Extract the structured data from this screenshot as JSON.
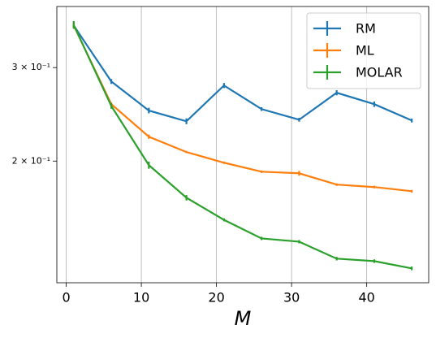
{
  "chart_data": {
    "type": "line",
    "xlabel": "M",
    "x": [
      1,
      6,
      11,
      16,
      21,
      26,
      31,
      36,
      41,
      46
    ],
    "series": [
      {
        "name": "RM",
        "color": "#1f77b4",
        "values": [
          0.36,
          0.2825,
          0.249,
          0.2377,
          0.2776,
          0.2506,
          0.2393,
          0.269,
          0.256,
          0.2385
        ],
        "errors": [
          0.004,
          0.003,
          0.003,
          0.003,
          0.003,
          0.002,
          0.002,
          0.003,
          0.003,
          0.002
        ]
      },
      {
        "name": "ML",
        "color": "#ff7f0e",
        "values": [
          0.36,
          0.256,
          0.2223,
          0.208,
          0.1986,
          0.191,
          0.1897,
          0.1806,
          0.1787,
          0.1755
        ],
        "errors": [
          0.004,
          0.002,
          0.002,
          0.001,
          0.001,
          0.001,
          0.002,
          0.001,
          0.001,
          0.001
        ]
      },
      {
        "name": "MOLAR",
        "color": "#2ca02c",
        "values": [
          0.361,
          0.254,
          0.1965,
          0.1706,
          0.155,
          0.143,
          0.141,
          0.131,
          0.1296,
          0.1256
        ],
        "errors": [
          0.006,
          0.003,
          0.003,
          0.002,
          0.001,
          0.001,
          0.001,
          0.001,
          0.001,
          0.001
        ]
      }
    ],
    "xlim": [
      -1.25,
      48.25
    ],
    "xticks": [
      0,
      10,
      20,
      30,
      40
    ],
    "ylim": [
      0.118,
      0.391
    ],
    "ylog": true,
    "yticks": [
      {
        "value": 0.2,
        "label": "2 × 10⁻¹"
      },
      {
        "value": 0.3,
        "label": "3 × 10⁻¹"
      }
    ],
    "grid": "x",
    "legend": "upper right"
  }
}
